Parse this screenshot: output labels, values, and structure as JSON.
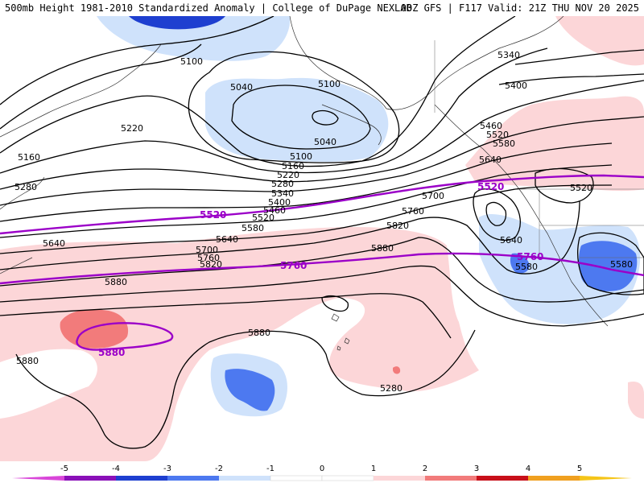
{
  "header": {
    "left_title": "500mb Height 1981-2010 Standardized Anomaly | College of DuPage NEXLAB",
    "right_title": "00Z GFS | F117 Valid: 21Z THU NOV 20 2025"
  },
  "colors": {
    "neg5": "#d946d9",
    "neg4": "#8a10b8",
    "neg3": "#1e3fd0",
    "neg2": "#4d79f0",
    "neg1": "#cfe2fb",
    "pos1": "#fcd6d8",
    "pos2": "#f27b7b",
    "pos3": "#c8101a",
    "pos4": "#f0a020",
    "pos5": "#f5c518",
    "contour": "#000000",
    "highlight_contour": "#9b00c8"
  },
  "contour_labels": [
    {
      "text": "5100",
      "id": "a"
    },
    {
      "text": "5040",
      "id": "b"
    },
    {
      "text": "5100",
      "id": "c"
    },
    {
      "text": "5040",
      "id": "d"
    },
    {
      "text": "5220",
      "id": "e"
    },
    {
      "text": "5160",
      "id": "f"
    },
    {
      "text": "5100",
      "id": "g"
    },
    {
      "text": "5160",
      "id": "h"
    },
    {
      "text": "5220",
      "id": "i"
    },
    {
      "text": "5280",
      "id": "j"
    },
    {
      "text": "5340",
      "id": "k"
    },
    {
      "text": "5400",
      "id": "l"
    },
    {
      "text": "5460",
      "id": "m"
    },
    {
      "text": "5280",
      "id": "n"
    },
    {
      "text": "5520",
      "id": "o"
    },
    {
      "text": "5580",
      "id": "p"
    },
    {
      "text": "5640",
      "id": "q"
    },
    {
      "text": "5640",
      "id": "r"
    },
    {
      "text": "5700",
      "id": "s"
    },
    {
      "text": "5760",
      "id": "t"
    },
    {
      "text": "5820",
      "id": "u"
    },
    {
      "text": "5880",
      "id": "v"
    },
    {
      "text": "5700",
      "id": "w"
    },
    {
      "text": "5760",
      "id": "x"
    },
    {
      "text": "5820",
      "id": "y"
    },
    {
      "text": "5880",
      "id": "z"
    },
    {
      "text": "5880",
      "id": "aa"
    },
    {
      "text": "5880",
      "id": "ab"
    },
    {
      "text": "5280",
      "id": "ac"
    },
    {
      "text": "5340",
      "id": "ad"
    },
    {
      "text": "5400",
      "id": "ae"
    },
    {
      "text": "5460",
      "id": "af"
    },
    {
      "text": "5520",
      "id": "ag"
    },
    {
      "text": "5580",
      "id": "ah"
    },
    {
      "text": "5640",
      "id": "ai"
    },
    {
      "text": "5520",
      "id": "aj"
    },
    {
      "text": "5640",
      "id": "ak"
    },
    {
      "text": "5580",
      "id": "al"
    },
    {
      "text": "5580",
      "id": "am"
    }
  ],
  "highlight_labels": [
    {
      "text": "5520",
      "id": "h1"
    },
    {
      "text": "5520",
      "id": "h2"
    },
    {
      "text": "5760",
      "id": "h3"
    },
    {
      "text": "5760",
      "id": "h4"
    },
    {
      "text": "5880",
      "id": "h5"
    }
  ],
  "colorbar": {
    "ticks": [
      "-5",
      "-4",
      "-3",
      "-2",
      "-1",
      "0",
      "1",
      "2",
      "3",
      "4",
      "5"
    ]
  }
}
